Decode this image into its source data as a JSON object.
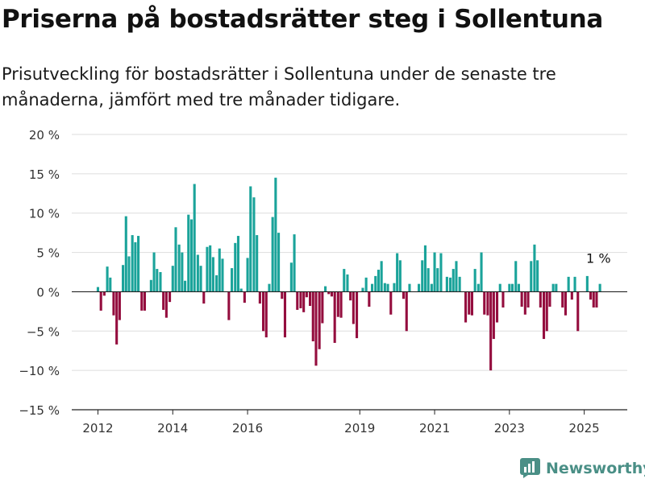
{
  "title": "Priserna på bostadsrätter steg i Sollentuna",
  "subtitle": "Prisutveckling för bostadsrätter i Sollentuna under de senaste tre månaderna, jämfört med tre månader tidigare.",
  "brand": "Newsworthy",
  "colors": {
    "positive": "#1aa39a",
    "negative": "#940d3e",
    "grid": "#dddddd",
    "axis": "#222222",
    "brand": "#4a8f86"
  },
  "chart_data": {
    "type": "bar",
    "ylim": [
      -15,
      20
    ],
    "y_ticks": [
      20,
      15,
      10,
      5,
      0,
      -5,
      -10,
      -15
    ],
    "y_tick_labels": [
      "20 %",
      "15 %",
      "10 %",
      "5 %",
      "0 %",
      "−5 %",
      "−10 %",
      "−15 %"
    ],
    "x_ticks": [
      2012,
      2014,
      2016,
      2019,
      2021,
      2023,
      2025
    ],
    "x_tick_labels": [
      "2012",
      "2014",
      "2016",
      "2019",
      "2021",
      "2023",
      "2025"
    ],
    "x_range": [
      2011.3,
      2026.15
    ],
    "annotation": {
      "text": "1 %",
      "x": 2025.1,
      "y": 1
    },
    "series": [
      {
        "x": [
          2012.0,
          2012.08,
          2012.17,
          2012.25,
          2012.33,
          2012.42,
          2012.5,
          2012.58,
          2012.67,
          2012.75,
          2012.83,
          2012.92,
          2013.0,
          2013.08,
          2013.17,
          2013.25,
          2013.33,
          2013.42,
          2013.5,
          2013.58,
          2013.67,
          2013.75,
          2013.83,
          2013.92,
          2014.0,
          2014.08,
          2014.17,
          2014.25,
          2014.33,
          2014.42,
          2014.5,
          2014.58,
          2014.67,
          2014.75,
          2014.83,
          2014.92,
          2015.0,
          2015.08,
          2015.17,
          2015.25,
          2015.33,
          2015.42,
          2015.5,
          2015.58,
          2015.67,
          2015.75,
          2015.83,
          2015.92,
          2016.0,
          2016.08,
          2016.17,
          2016.25,
          2016.33,
          2016.42,
          2016.5,
          2016.58,
          2016.67,
          2016.75,
          2016.83,
          2016.92,
          2017.0,
          2017.08,
          2017.17,
          2017.25,
          2017.33,
          2017.42,
          2017.5,
          2017.58,
          2017.67,
          2017.75,
          2017.83,
          2017.92,
          2018.0,
          2018.08,
          2018.17,
          2018.25,
          2018.33,
          2018.42,
          2018.5,
          2018.58,
          2018.67,
          2018.75,
          2018.83,
          2018.92,
          2019.0,
          2019.08,
          2019.17,
          2019.25,
          2019.33,
          2019.42,
          2019.5,
          2019.58,
          2019.67,
          2019.75,
          2019.83,
          2019.92,
          2020.0,
          2020.08,
          2020.17,
          2020.25,
          2020.33,
          2020.42,
          2020.5,
          2020.58,
          2020.67,
          2020.75,
          2020.83,
          2020.92,
          2021.0,
          2021.08,
          2021.17,
          2021.25,
          2021.33,
          2021.42,
          2021.5,
          2021.58,
          2021.67,
          2021.75,
          2021.83,
          2021.92,
          2022.0,
          2022.08,
          2022.17,
          2022.25,
          2022.33,
          2022.42,
          2022.5,
          2022.58,
          2022.67,
          2022.75,
          2022.83,
          2022.92,
          2023.0,
          2023.08,
          2023.17,
          2023.25,
          2023.33,
          2023.42,
          2023.5,
          2023.58,
          2023.67,
          2023.75,
          2023.83,
          2023.92,
          2024.0,
          2024.08,
          2024.17,
          2024.25,
          2024.33,
          2024.42,
          2024.5,
          2024.58,
          2024.67,
          2024.75,
          2024.83,
          2024.92,
          2025.0,
          2025.08,
          2025.17,
          2025.25,
          2025.33,
          2025.42
        ],
        "values": [
          0.6,
          -2.4,
          -0.5,
          3.2,
          1.8,
          -3.0,
          -6.7,
          -3.6,
          3.4,
          9.6,
          4.5,
          7.2,
          6.3,
          7.1,
          -2.4,
          -2.4,
          0,
          1.5,
          5.0,
          2.9,
          2.5,
          -2.3,
          -3.3,
          -1.3,
          3.3,
          8.2,
          6.0,
          5.0,
          1.4,
          9.8,
          9.2,
          13.7,
          4.7,
          3.3,
          -1.5,
          5.7,
          5.9,
          4.4,
          2.1,
          5.5,
          4.2,
          0,
          -3.6,
          3.0,
          6.2,
          7.1,
          0.4,
          -1.4,
          4.3,
          13.4,
          12.0,
          7.2,
          -1.5,
          -5.0,
          -5.8,
          1.0,
          9.5,
          14.5,
          7.5,
          -0.9,
          -5.8,
          0,
          3.7,
          7.3,
          -2.3,
          -2.1,
          -2.6,
          -0.7,
          -1.8,
          -6.3,
          -9.4,
          -7.3,
          -4.0,
          0.7,
          -0.3,
          -0.6,
          -6.5,
          -3.2,
          -3.3,
          2.9,
          2.2,
          -1.1,
          -4.1,
          -5.9,
          0,
          0.5,
          1.8,
          -1.9,
          1.0,
          2.0,
          2.8,
          3.9,
          1.1,
          1.0,
          -2.9,
          1.1,
          4.9,
          4.0,
          -0.9,
          -5.0,
          1.0,
          0,
          0,
          1.0,
          4.0,
          5.9,
          3.0,
          1.0,
          5.0,
          3.0,
          4.9,
          0,
          1.9,
          1.8,
          2.9,
          3.9,
          1.9,
          0,
          -3.9,
          -2.9,
          -3.0,
          2.9,
          1.0,
          5.0,
          -2.9,
          -3.0,
          -10.0,
          -6.0,
          -3.9,
          1.0,
          -2.0,
          0,
          1.0,
          1.0,
          3.9,
          1.0,
          -1.9,
          -2.9,
          -2.0,
          3.9,
          6.0,
          4.0,
          -2.0,
          -6.0,
          -5.0,
          -1.9,
          1.0,
          1.0,
          0,
          -2.0,
          -3.0,
          1.9,
          -1.0,
          1.9,
          -5.0,
          0,
          0,
          2.0,
          -1.0,
          -2.0,
          -2.0,
          1.0
        ]
      }
    ]
  }
}
